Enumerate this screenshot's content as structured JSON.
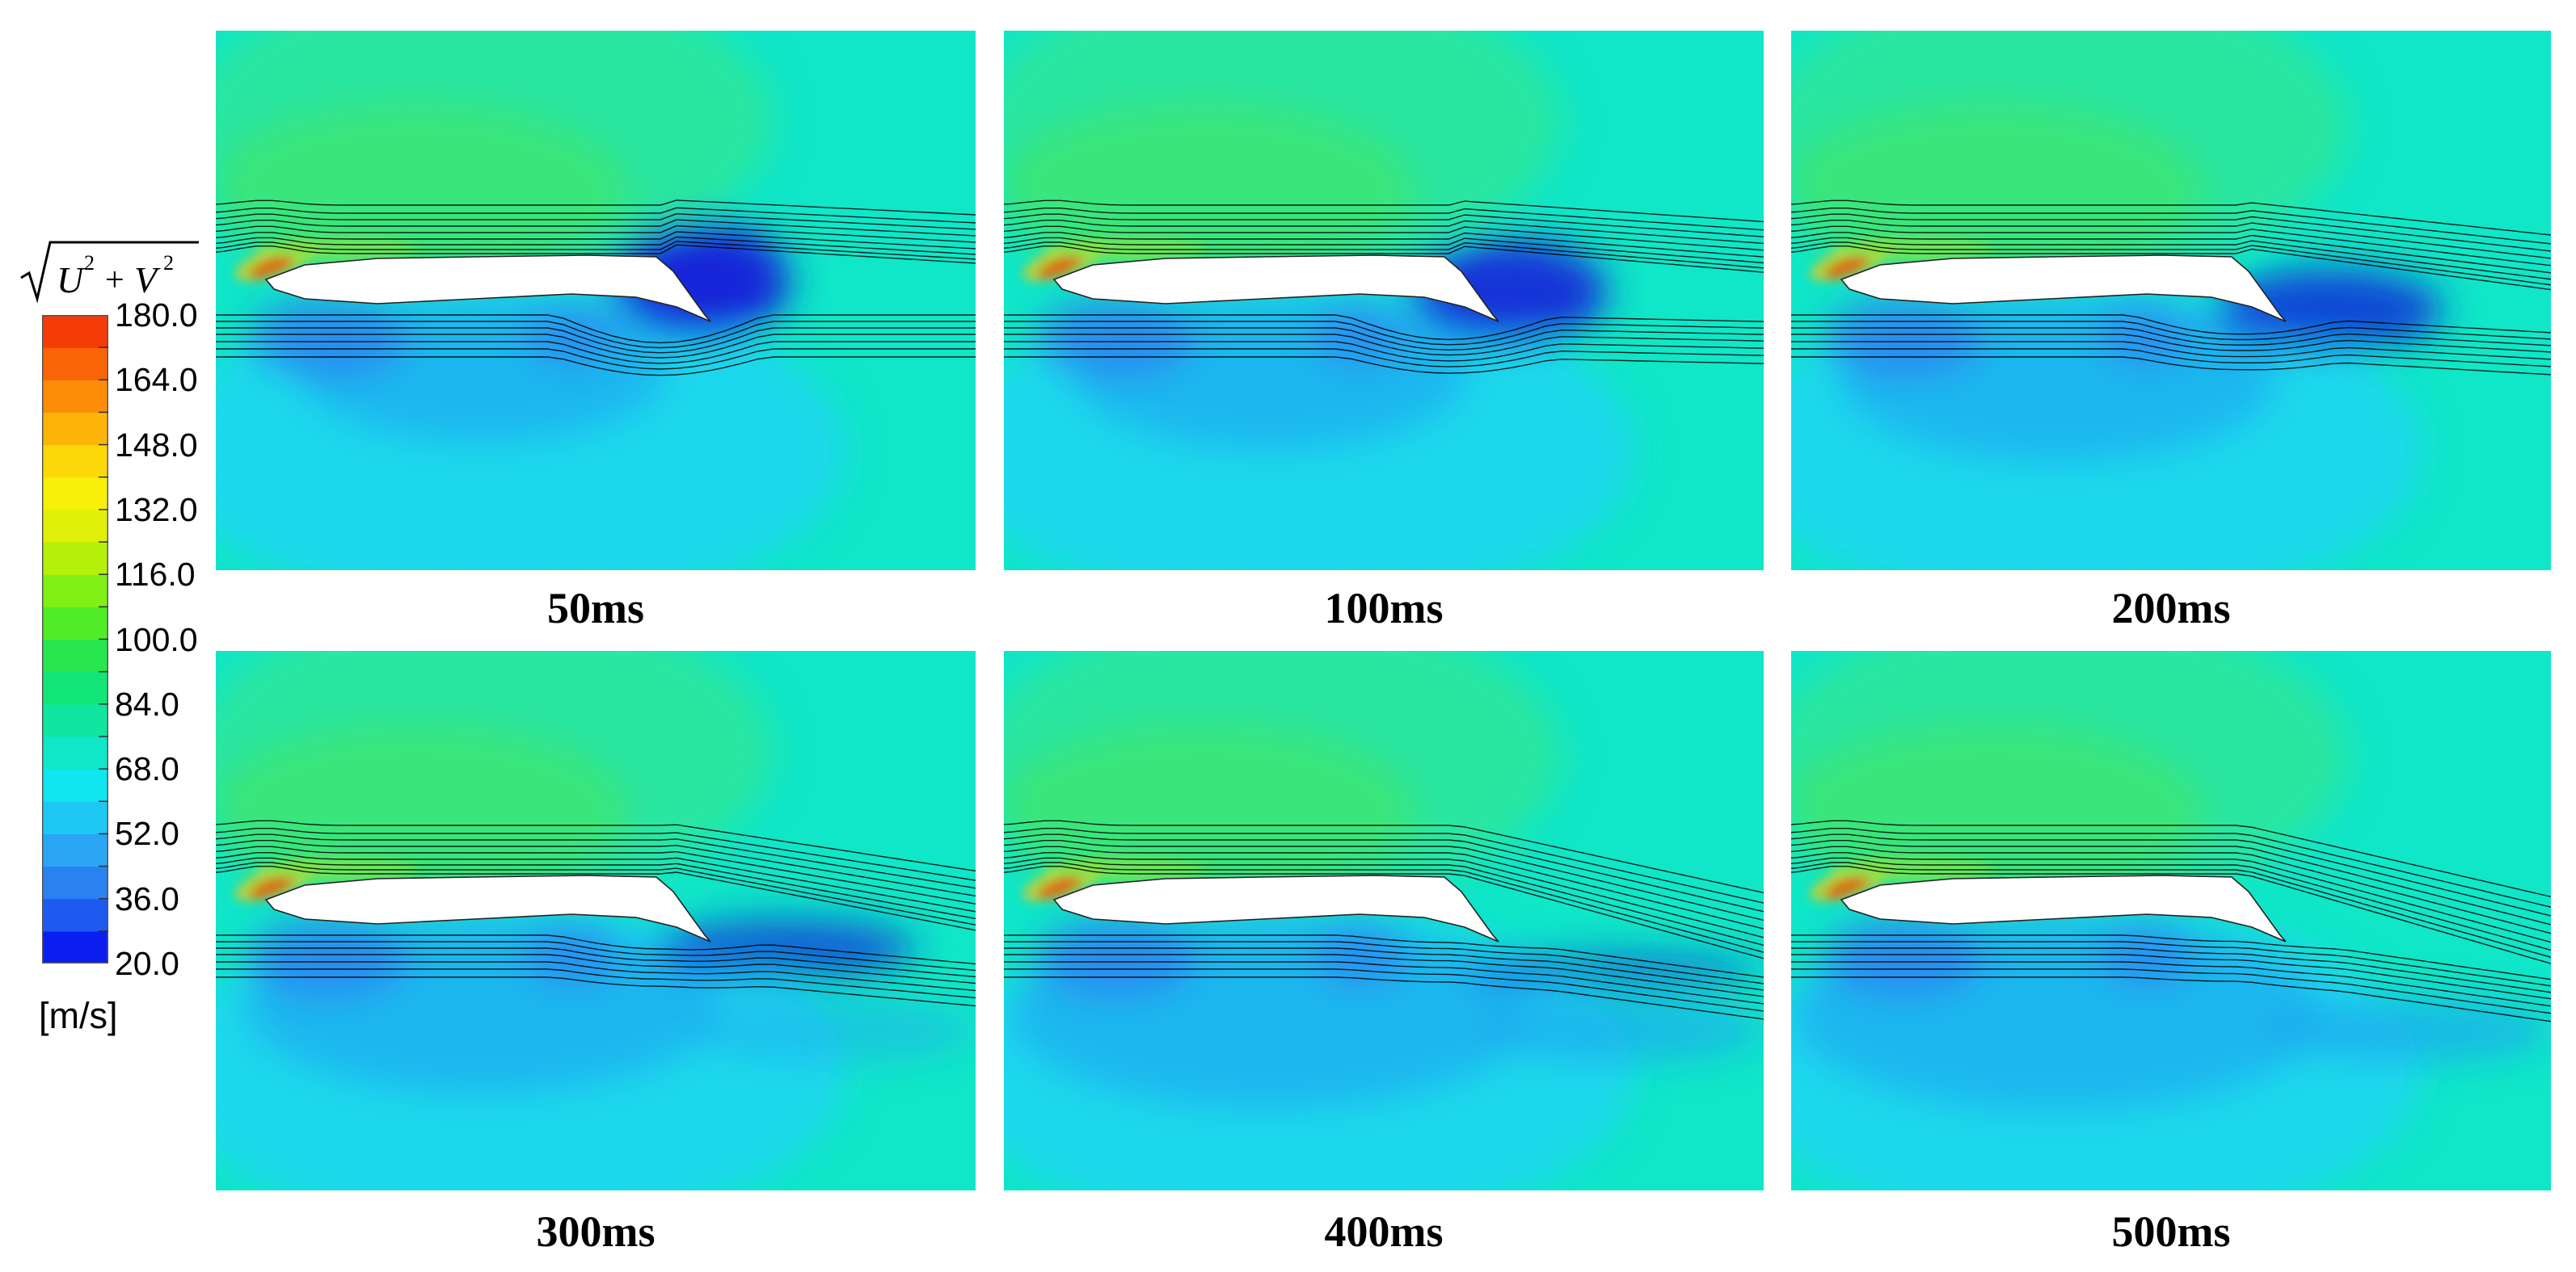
{
  "legend": {
    "formula": {
      "var_u": "U",
      "var_v": "V",
      "exp": "2",
      "plus": "+"
    },
    "unit": "[m/s]",
    "ticks": [
      "180.0",
      "164.0",
      "148.0",
      "132.0",
      "116.0",
      "100.0",
      "84.0",
      "68.0",
      "52.0",
      "36.0",
      "20.0"
    ],
    "min_value": 20.0,
    "max_value": 180.0,
    "band_colors": [
      "#0a1ef0",
      "#1e5af0",
      "#2a82f0",
      "#2aa6f5",
      "#1ec8f5",
      "#10e6f0",
      "#10e6c8",
      "#10e6a0",
      "#12e678",
      "#28e650",
      "#50ec28",
      "#80f014",
      "#b4f00a",
      "#e1f008",
      "#f8f008",
      "#fdd808",
      "#fdb408",
      "#fd8c08",
      "#fa6408",
      "#f53c08"
    ]
  },
  "panels": [
    {
      "caption": "50ms",
      "separation": 1.0
    },
    {
      "caption": "100ms",
      "separation": 0.85
    },
    {
      "caption": "200ms",
      "separation": 0.6
    },
    {
      "caption": "300ms",
      "separation": 0.35
    },
    {
      "caption": "400ms",
      "separation": 0.05
    },
    {
      "caption": "500ms",
      "separation": 0.0
    }
  ],
  "colors": {
    "freestream": "#10e6c8",
    "slow": "#1ec8f5",
    "wake": "#1428d8",
    "fast": "#3ce678",
    "leading_edge": "#e05a10",
    "airfoil": "#ffffff",
    "streamline": "#000000"
  }
}
